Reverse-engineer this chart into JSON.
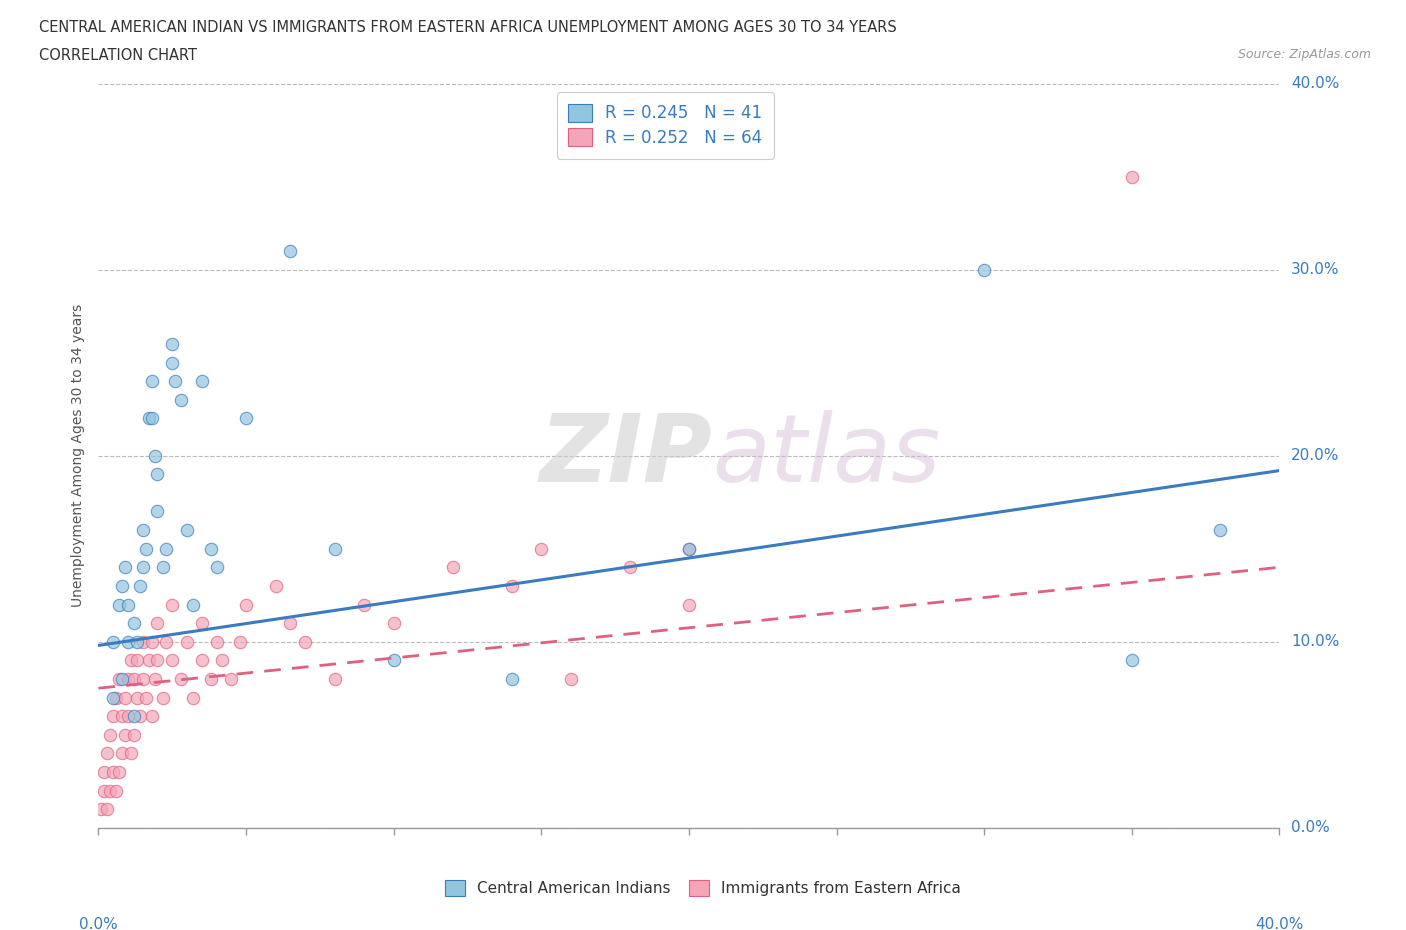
{
  "title_line1": "CENTRAL AMERICAN INDIAN VS IMMIGRANTS FROM EASTERN AFRICA UNEMPLOYMENT AMONG AGES 30 TO 34 YEARS",
  "title_line2": "CORRELATION CHART",
  "source": "Source: ZipAtlas.com",
  "ylabel": "Unemployment Among Ages 30 to 34 years",
  "ytick_labels": [
    "0.0%",
    "10.0%",
    "20.0%",
    "30.0%",
    "40.0%"
  ],
  "ytick_vals": [
    0.0,
    0.1,
    0.2,
    0.3,
    0.4
  ],
  "legend_1": "R = 0.245   N = 41",
  "legend_2": "R = 0.252   N = 64",
  "legend_label_1": "Central American Indians",
  "legend_label_2": "Immigrants from Eastern Africa",
  "color_blue": "#92c5de",
  "color_pink": "#f4a6b8",
  "color_blue_line": "#3a7cbf",
  "color_pink_line": "#e06080",
  "watermark_zip": "ZIP",
  "watermark_atlas": "atlas",
  "xmin": 0.0,
  "xmax": 0.4,
  "ymin": 0.0,
  "ymax": 0.4,
  "blue_trendline_x": [
    0.0,
    0.4
  ],
  "blue_trendline_y": [
    0.098,
    0.192
  ],
  "pink_trendline_x": [
    0.0,
    0.4
  ],
  "pink_trendline_y": [
    0.075,
    0.14
  ],
  "blue_x": [
    0.005,
    0.007,
    0.008,
    0.009,
    0.01,
    0.01,
    0.012,
    0.013,
    0.014,
    0.015,
    0.015,
    0.016,
    0.017,
    0.018,
    0.018,
    0.019,
    0.02,
    0.02,
    0.022,
    0.023,
    0.025,
    0.025,
    0.026,
    0.028,
    0.03,
    0.032,
    0.035,
    0.038,
    0.04,
    0.05,
    0.065,
    0.08,
    0.1,
    0.14,
    0.2,
    0.3,
    0.35,
    0.38,
    0.005,
    0.008,
    0.012
  ],
  "blue_y": [
    0.1,
    0.12,
    0.13,
    0.14,
    0.1,
    0.12,
    0.11,
    0.1,
    0.13,
    0.14,
    0.16,
    0.15,
    0.22,
    0.22,
    0.24,
    0.2,
    0.19,
    0.17,
    0.14,
    0.15,
    0.25,
    0.26,
    0.24,
    0.23,
    0.16,
    0.12,
    0.24,
    0.15,
    0.14,
    0.22,
    0.31,
    0.15,
    0.09,
    0.08,
    0.15,
    0.3,
    0.09,
    0.16,
    0.07,
    0.08,
    0.06
  ],
  "pink_x": [
    0.001,
    0.002,
    0.002,
    0.003,
    0.003,
    0.004,
    0.004,
    0.005,
    0.005,
    0.006,
    0.006,
    0.007,
    0.007,
    0.008,
    0.008,
    0.009,
    0.009,
    0.01,
    0.01,
    0.011,
    0.011,
    0.012,
    0.012,
    0.013,
    0.013,
    0.014,
    0.015,
    0.015,
    0.016,
    0.017,
    0.018,
    0.018,
    0.019,
    0.02,
    0.02,
    0.022,
    0.023,
    0.025,
    0.025,
    0.028,
    0.03,
    0.032,
    0.035,
    0.035,
    0.038,
    0.04,
    0.042,
    0.045,
    0.048,
    0.05,
    0.06,
    0.065,
    0.07,
    0.08,
    0.09,
    0.1,
    0.12,
    0.14,
    0.15,
    0.16,
    0.18,
    0.2,
    0.2,
    0.35
  ],
  "pink_y": [
    0.01,
    0.02,
    0.03,
    0.01,
    0.04,
    0.02,
    0.05,
    0.03,
    0.06,
    0.02,
    0.07,
    0.03,
    0.08,
    0.04,
    0.06,
    0.05,
    0.07,
    0.06,
    0.08,
    0.04,
    0.09,
    0.05,
    0.08,
    0.07,
    0.09,
    0.06,
    0.08,
    0.1,
    0.07,
    0.09,
    0.06,
    0.1,
    0.08,
    0.09,
    0.11,
    0.07,
    0.1,
    0.09,
    0.12,
    0.08,
    0.1,
    0.07,
    0.09,
    0.11,
    0.08,
    0.1,
    0.09,
    0.08,
    0.1,
    0.12,
    0.13,
    0.11,
    0.1,
    0.08,
    0.12,
    0.11,
    0.14,
    0.13,
    0.15,
    0.08,
    0.14,
    0.12,
    0.15,
    0.35
  ]
}
